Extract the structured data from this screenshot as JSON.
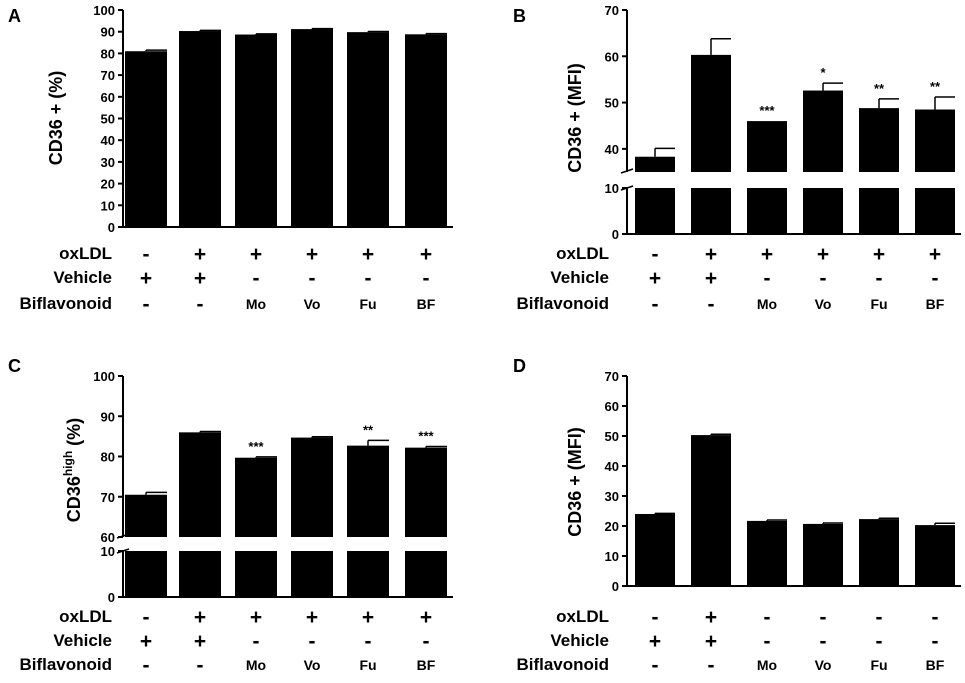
{
  "conditions": [
    "oxLDL",
    "Vehicle",
    "Biflavonoid"
  ],
  "colors": {
    "bar": "#000000",
    "axis": "#000000",
    "background": "#ffffff"
  },
  "chart_data": [
    {
      "label": "A",
      "type": "bar",
      "ylabel": "CD36 + (%)",
      "ylim": [
        0,
        100
      ],
      "yticks": [
        0,
        10,
        20,
        30,
        40,
        50,
        60,
        70,
        80,
        90,
        100
      ],
      "values": [
        81,
        90.3,
        88.7,
        91.2,
        89.8,
        88.8
      ],
      "errors": [
        0.5,
        0.3,
        0.3,
        0.2,
        0.3,
        0.3
      ],
      "significance": [
        "",
        "",
        "",
        "",
        "",
        ""
      ],
      "treatments": {
        "oxLDL": [
          "-",
          "+",
          "+",
          "+",
          "+",
          "+"
        ],
        "Vehicle": [
          "+",
          "+",
          "-",
          "-",
          "-",
          "-"
        ],
        "Biflavonoid": [
          "-",
          "-",
          "Mo",
          "Vo",
          "Fu",
          "BF"
        ]
      }
    },
    {
      "label": "B",
      "type": "bar",
      "ylabel": "CD36 + (MFI)",
      "broken_axis": {
        "lower": [
          0,
          10
        ],
        "upper": [
          35,
          70
        ]
      },
      "yticks_lower": [
        0,
        10
      ],
      "yticks_upper": [
        40,
        50,
        60,
        70
      ],
      "values": [
        38.3,
        60.3,
        46,
        52.6,
        48.8,
        48.5
      ],
      "errors": [
        1.8,
        3.5,
        0,
        1.6,
        2.0,
        2.7
      ],
      "significance": [
        "",
        "",
        "***",
        "*",
        "**",
        "**"
      ],
      "treatments": {
        "oxLDL": [
          "-",
          "+",
          "+",
          "+",
          "+",
          "+"
        ],
        "Vehicle": [
          "+",
          "+",
          "-",
          "-",
          "-",
          "-"
        ],
        "Biflavonoid": [
          "-",
          "-",
          "Mo",
          "Vo",
          "Fu",
          "BF"
        ]
      }
    },
    {
      "label": "C",
      "type": "bar",
      "ylabel": "CD36",
      "ylabel_sup": "high",
      "ylabel_suffix": " (%)",
      "broken_axis": {
        "lower": [
          0,
          10
        ],
        "upper": [
          60,
          100
        ]
      },
      "yticks_lower": [
        0,
        10
      ],
      "yticks_upper": [
        60,
        70,
        80,
        90,
        100
      ],
      "values": [
        70.5,
        86,
        79.7,
        84.7,
        82.7,
        82.2
      ],
      "errors": [
        0.6,
        0.2,
        0.2,
        0.2,
        1.3,
        0.3
      ],
      "significance": [
        "",
        "",
        "***",
        "",
        "**",
        "***"
      ],
      "treatments": {
        "oxLDL": [
          "-",
          "+",
          "+",
          "+",
          "+",
          "+"
        ],
        "Vehicle": [
          "+",
          "+",
          "-",
          "-",
          "-",
          "-"
        ],
        "Biflavonoid": [
          "-",
          "-",
          "Mo",
          "Vo",
          "Fu",
          "BF"
        ]
      }
    },
    {
      "label": "D",
      "type": "bar",
      "ylabel": "CD36 + (MFI)",
      "ylim": [
        0,
        70
      ],
      "yticks": [
        0,
        10,
        20,
        30,
        40,
        50,
        60,
        70
      ],
      "values": [
        24,
        50.3,
        21.7,
        20.7,
        22.3,
        20.3
      ],
      "errors": [
        0.2,
        0.3,
        0.3,
        0.3,
        0.3,
        0.6
      ],
      "significance": [
        "",
        "",
        "",
        "",
        "",
        ""
      ],
      "treatments": {
        "oxLDL": [
          "-",
          "+",
          "-",
          "-",
          "-",
          "-"
        ],
        "Vehicle": [
          "+",
          "+",
          "-",
          "-",
          "-",
          "-"
        ],
        "Biflavonoid": [
          "-",
          "-",
          "Mo",
          "Vo",
          "Fu",
          "BF"
        ]
      }
    }
  ]
}
